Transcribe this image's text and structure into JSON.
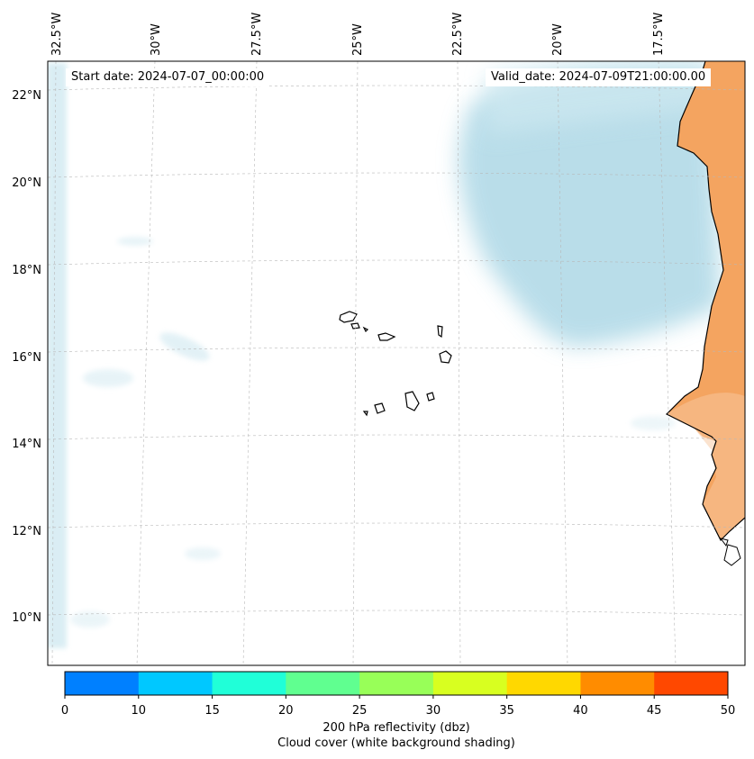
{
  "header": {
    "start_date": "Start date: 2024-07-07_00:00:00",
    "valid_date": "Valid_date: 2024-07-09T21:00:00.00"
  },
  "map": {
    "lon_labels": [
      "32.5°W",
      "30°W",
      "27.5°W",
      "25°W",
      "22.5°W",
      "20°W",
      "17.5°W"
    ],
    "lat_labels": [
      "22°N",
      "20°N",
      "18°N",
      "16°N",
      "14°N",
      "12°N",
      "10°N"
    ],
    "land_color": "#f4a460",
    "cloud_color": "#add8e6",
    "coastline_color": "#000000",
    "gridlines": true
  },
  "colorbar": {
    "ticks": [
      "0",
      "10",
      "15",
      "20",
      "25",
      "30",
      "35",
      "40",
      "45",
      "50"
    ],
    "colors": [
      "#0080ff",
      "#00c8ff",
      "#20ffd8",
      "#60ff90",
      "#98ff58",
      "#d8ff20",
      "#ffd800",
      "#ff8c00",
      "#ff4800"
    ],
    "label": "200 hPa reflectivity (dbz)",
    "sublabel": "Cloud cover (white background shading)"
  }
}
